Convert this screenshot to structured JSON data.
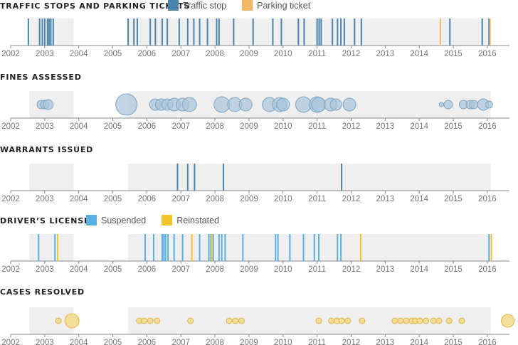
{
  "colors": {
    "traffic_stop": "#4a84a8",
    "parking_ticket": "#f0b866",
    "fine_fill": "#a9c4da",
    "fine_stroke": "#7fa6c4",
    "fine_dark_fill": "#8cb0cd",
    "warrant": "#4a84a8",
    "suspended": "#5ab0e0",
    "reinstated": "#f2c62a",
    "case_fill": "#f3da8a",
    "case_stroke": "#ddb443",
    "band": "#efefef",
    "baseline": "#888888"
  },
  "legend_traffic": {
    "stop": "Traffic stop",
    "parking": "Parking ticket"
  },
  "legend_license": {
    "suspended": "Suspended",
    "reinstated": "Reinstated"
  },
  "chart_data": [
    {
      "type": "timeline",
      "title": "TRAFFIC STOPS AND PARKING TICKETS",
      "xlim": [
        2002,
        2016.65
      ],
      "ticks": [
        2002,
        2003,
        2004,
        2005,
        2006,
        2007,
        2008,
        2009,
        2010,
        2011,
        2012,
        2013,
        2014,
        2015,
        2016
      ],
      "bands": [
        [
          2002.55,
          2003.85
        ],
        [
          2005.45,
          2016.1
        ]
      ],
      "series": [
        {
          "name": "Traffic stop",
          "events": [
            2002.52,
            2002.85,
            2002.93,
            2003.0,
            2003.08,
            2003.13,
            2003.18,
            2003.25,
            2005.45,
            2005.62,
            2005.72,
            2006.1,
            2006.25,
            2006.45,
            2006.6,
            2006.95,
            2007.2,
            2007.38,
            2007.55,
            2007.78,
            2008.05,
            2008.12,
            2008.55,
            2009.12,
            2009.7,
            2009.95,
            2010.45,
            2010.62,
            2011.0,
            2011.06,
            2011.12,
            2011.45,
            2011.6,
            2011.7,
            2011.8,
            2012.1,
            2012.3,
            2014.9,
            2015.85,
            2016.05
          ]
        },
        {
          "name": "Parking ticket",
          "events": [
            2014.62,
            2016.08
          ]
        }
      ]
    },
    {
      "type": "bubble_timeline",
      "title": "FINES ASSESSED",
      "xlim": [
        2002,
        2016.65
      ],
      "ticks": [
        2002,
        2003,
        2004,
        2005,
        2006,
        2007,
        2008,
        2009,
        2010,
        2011,
        2012,
        2013,
        2014,
        2015,
        2016
      ],
      "bands": [
        [
          2002.55,
          2003.85
        ],
        [
          2005.45,
          2016.1
        ]
      ],
      "points": [
        [
          2002.9,
          6
        ],
        [
          2003.0,
          6
        ],
        [
          2003.1,
          7
        ],
        [
          2005.4,
          15
        ],
        [
          2006.25,
          8
        ],
        [
          2006.42,
          8
        ],
        [
          2006.6,
          8
        ],
        [
          2006.8,
          9
        ],
        [
          2007.05,
          9
        ],
        [
          2007.25,
          10
        ],
        [
          2008.2,
          11
        ],
        [
          2008.58,
          10
        ],
        [
          2008.9,
          9
        ],
        [
          2009.6,
          10
        ],
        [
          2009.9,
          10
        ],
        [
          2010.0,
          9
        ],
        [
          2010.6,
          11
        ],
        [
          2011.0,
          11
        ],
        [
          2011.05,
          10
        ],
        [
          2011.4,
          9
        ],
        [
          2011.55,
          8
        ],
        [
          2011.95,
          9
        ],
        [
          2014.65,
          3
        ],
        [
          2014.85,
          6
        ],
        [
          2015.3,
          6
        ],
        [
          2015.5,
          6
        ],
        [
          2015.6,
          6
        ],
        [
          2015.88,
          8
        ],
        [
          2016.05,
          5
        ]
      ]
    },
    {
      "type": "timeline",
      "title": "WARRANTS ISSUED",
      "xlim": [
        2002,
        2016.65
      ],
      "ticks": [
        2002,
        2003,
        2004,
        2005,
        2006,
        2007,
        2008,
        2009,
        2010,
        2011,
        2012,
        2013,
        2014,
        2015,
        2016
      ],
      "bands": [
        [
          2002.55,
          2003.85
        ],
        [
          2005.45,
          2016.1
        ]
      ],
      "series": [
        {
          "name": "Warrant",
          "events": [
            2006.9,
            2007.2,
            2007.4,
            2008.25,
            2011.72
          ]
        }
      ]
    },
    {
      "type": "timeline",
      "title": "DRIVER’S LICENSE",
      "xlim": [
        2002,
        2016.65
      ],
      "ticks": [
        2002,
        2003,
        2004,
        2005,
        2006,
        2007,
        2008,
        2009,
        2010,
        2011,
        2012,
        2013,
        2014,
        2015,
        2016
      ],
      "bands": [
        [
          2002.55,
          2003.85
        ],
        [
          2005.45,
          2016.1
        ]
      ],
      "series": [
        {
          "name": "Suspended",
          "events": [
            2002.82,
            2003.3,
            2005.95,
            2006.2,
            2006.45,
            2006.5,
            2006.55,
            2006.62,
            2006.8,
            2007.05,
            2007.55,
            2007.82,
            2007.88,
            2007.95,
            2008.12,
            2008.2,
            2008.3,
            2008.82,
            2009.78,
            2009.85,
            2010.2,
            2010.6,
            2010.92,
            2011.05,
            2011.6,
            2011.7,
            2016.05
          ]
        },
        {
          "name": "Reinstated",
          "events": [
            2003.38,
            2007.32,
            2007.9,
            2012.28,
            2016.12
          ]
        }
      ]
    },
    {
      "type": "bubble_timeline",
      "title": "CASES RESOLVED",
      "xlim": [
        2002,
        2016.65
      ],
      "ticks": [
        2002,
        2003,
        2004,
        2005,
        2006,
        2007,
        2008,
        2009,
        2010,
        2011,
        2012,
        2013,
        2014,
        2015,
        2016
      ],
      "bands": [
        [
          2002.55,
          2003.85
        ],
        [
          2005.45,
          2016.1
        ]
      ],
      "points": [
        [
          2003.4,
          4
        ],
        [
          2003.8,
          10
        ],
        [
          2005.78,
          4
        ],
        [
          2005.92,
          4
        ],
        [
          2006.1,
          4
        ],
        [
          2006.3,
          4
        ],
        [
          2007.28,
          4
        ],
        [
          2008.42,
          4
        ],
        [
          2008.6,
          4
        ],
        [
          2008.78,
          4
        ],
        [
          2011.05,
          4
        ],
        [
          2011.42,
          4
        ],
        [
          2011.58,
          4
        ],
        [
          2011.72,
          4
        ],
        [
          2011.9,
          4
        ],
        [
          2012.32,
          4
        ],
        [
          2013.28,
          4
        ],
        [
          2013.45,
          4
        ],
        [
          2013.62,
          4
        ],
        [
          2013.78,
          4
        ],
        [
          2013.88,
          4
        ],
        [
          2014.02,
          4
        ],
        [
          2014.2,
          4
        ],
        [
          2014.42,
          4
        ],
        [
          2014.58,
          4
        ],
        [
          2014.88,
          4
        ],
        [
          2015.25,
          4
        ],
        [
          2016.6,
          9
        ]
      ]
    }
  ]
}
